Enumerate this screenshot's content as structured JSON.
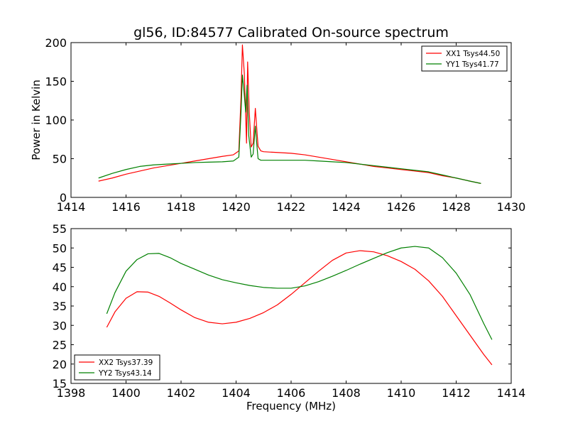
{
  "figure": {
    "title": "gl56, ID:84577 Calibrated On-source spectrum"
  },
  "chart_data": [
    {
      "type": "line",
      "title": "gl56, ID:84577 Calibrated On-source spectrum",
      "xlabel": "",
      "ylabel": "Power in Kelvin",
      "xlim": [
        1414,
        1430
      ],
      "ylim": [
        0,
        200
      ],
      "xticks": [
        1414,
        1416,
        1418,
        1420,
        1422,
        1424,
        1426,
        1428,
        1430
      ],
      "yticks": [
        0,
        50,
        100,
        150,
        200
      ],
      "grid": false,
      "legend_position": "top-right",
      "series": [
        {
          "name": "XX1 Tsys44.50",
          "color": "#ff0000",
          "x": [
            1415.0,
            1415.5,
            1416.0,
            1416.5,
            1417.0,
            1417.5,
            1418.0,
            1418.5,
            1419.0,
            1419.5,
            1419.9,
            1420.1,
            1420.18,
            1420.23,
            1420.3,
            1420.38,
            1420.42,
            1420.48,
            1420.55,
            1420.62,
            1420.7,
            1420.75,
            1420.8,
            1420.9,
            1421.0,
            1421.5,
            1422.0,
            1422.5,
            1423.0,
            1423.5,
            1424.0,
            1424.5,
            1425.0,
            1425.5,
            1426.0,
            1426.5,
            1427.0,
            1427.5,
            1428.0,
            1428.5,
            1428.9
          ],
          "y": [
            21,
            25,
            30,
            34,
            38,
            41,
            44,
            47,
            50,
            53,
            55,
            60,
            130,
            197,
            160,
            70,
            175,
            110,
            65,
            70,
            115,
            90,
            66,
            60,
            59,
            58,
            57,
            55,
            52,
            49,
            46,
            43,
            40,
            38,
            36,
            34,
            32,
            28,
            25,
            21,
            18
          ]
        },
        {
          "name": "YY1 Tsys41.77",
          "color": "#008000",
          "x": [
            1415.0,
            1415.5,
            1416.0,
            1416.5,
            1417.0,
            1417.5,
            1418.0,
            1418.5,
            1419.0,
            1419.5,
            1419.9,
            1420.1,
            1420.18,
            1420.23,
            1420.28,
            1420.35,
            1420.4,
            1420.46,
            1420.55,
            1420.62,
            1420.7,
            1420.75,
            1420.8,
            1420.9,
            1421.0,
            1421.5,
            1422.0,
            1422.5,
            1423.0,
            1423.5,
            1424.0,
            1424.5,
            1425.0,
            1425.5,
            1426.0,
            1426.5,
            1427.0,
            1427.5,
            1428.0,
            1428.5,
            1428.9
          ],
          "y": [
            25,
            31,
            36,
            40,
            42,
            43,
            44,
            45,
            45.5,
            46,
            47,
            52,
            110,
            158,
            140,
            110,
            145,
            80,
            52,
            56,
            92,
            70,
            50,
            48,
            48,
            48,
            48,
            48,
            47,
            46,
            45,
            43,
            41,
            39,
            37,
            35,
            33,
            29,
            25,
            21,
            18
          ]
        }
      ]
    },
    {
      "type": "line",
      "title": "",
      "xlabel": "Frequency (MHz)",
      "ylabel": "",
      "xlim": [
        1398,
        1414
      ],
      "ylim": [
        15,
        55
      ],
      "xticks": [
        1398,
        1400,
        1402,
        1404,
        1406,
        1408,
        1410,
        1412,
        1414
      ],
      "yticks": [
        15,
        20,
        25,
        30,
        35,
        40,
        45,
        50,
        55
      ],
      "grid": false,
      "legend_position": "bottom-left",
      "series": [
        {
          "name": "XX2 Tsys37.39",
          "color": "#ff0000",
          "x": [
            1399.3,
            1399.6,
            1400.0,
            1400.4,
            1400.8,
            1401.2,
            1401.6,
            1402.0,
            1402.5,
            1403.0,
            1403.5,
            1404.0,
            1404.5,
            1405.0,
            1405.5,
            1406.0,
            1406.5,
            1407.0,
            1407.5,
            1408.0,
            1408.5,
            1409.0,
            1409.5,
            1410.0,
            1410.5,
            1411.0,
            1411.5,
            1412.0,
            1412.5,
            1413.0,
            1413.3
          ],
          "y": [
            29.5,
            33.5,
            37,
            38.7,
            38.6,
            37.5,
            35.8,
            34,
            32,
            30.8,
            30.4,
            30.8,
            31.8,
            33.3,
            35.3,
            38,
            41,
            44,
            46.8,
            48.7,
            49.3,
            49,
            48,
            46.5,
            44.5,
            41.5,
            37.5,
            32.5,
            27.5,
            22.5,
            19.8
          ]
        },
        {
          "name": "YY2 Tsys43.14",
          "color": "#008000",
          "x": [
            1399.3,
            1399.6,
            1400.0,
            1400.4,
            1400.8,
            1401.2,
            1401.6,
            1402.0,
            1402.5,
            1403.0,
            1403.5,
            1404.0,
            1404.5,
            1405.0,
            1405.5,
            1406.0,
            1406.5,
            1407.0,
            1407.5,
            1408.0,
            1408.5,
            1409.0,
            1409.5,
            1410.0,
            1410.5,
            1411.0,
            1411.5,
            1412.0,
            1412.5,
            1413.0,
            1413.3
          ],
          "y": [
            33,
            38.5,
            44,
            47,
            48.5,
            48.6,
            47.5,
            46,
            44.5,
            43,
            41.8,
            41,
            40.3,
            39.8,
            39.6,
            39.6,
            40.2,
            41.3,
            42.7,
            44.2,
            45.8,
            47.3,
            48.8,
            50,
            50.4,
            50,
            47.5,
            43.5,
            38,
            30.5,
            26.3
          ]
        }
      ]
    }
  ]
}
